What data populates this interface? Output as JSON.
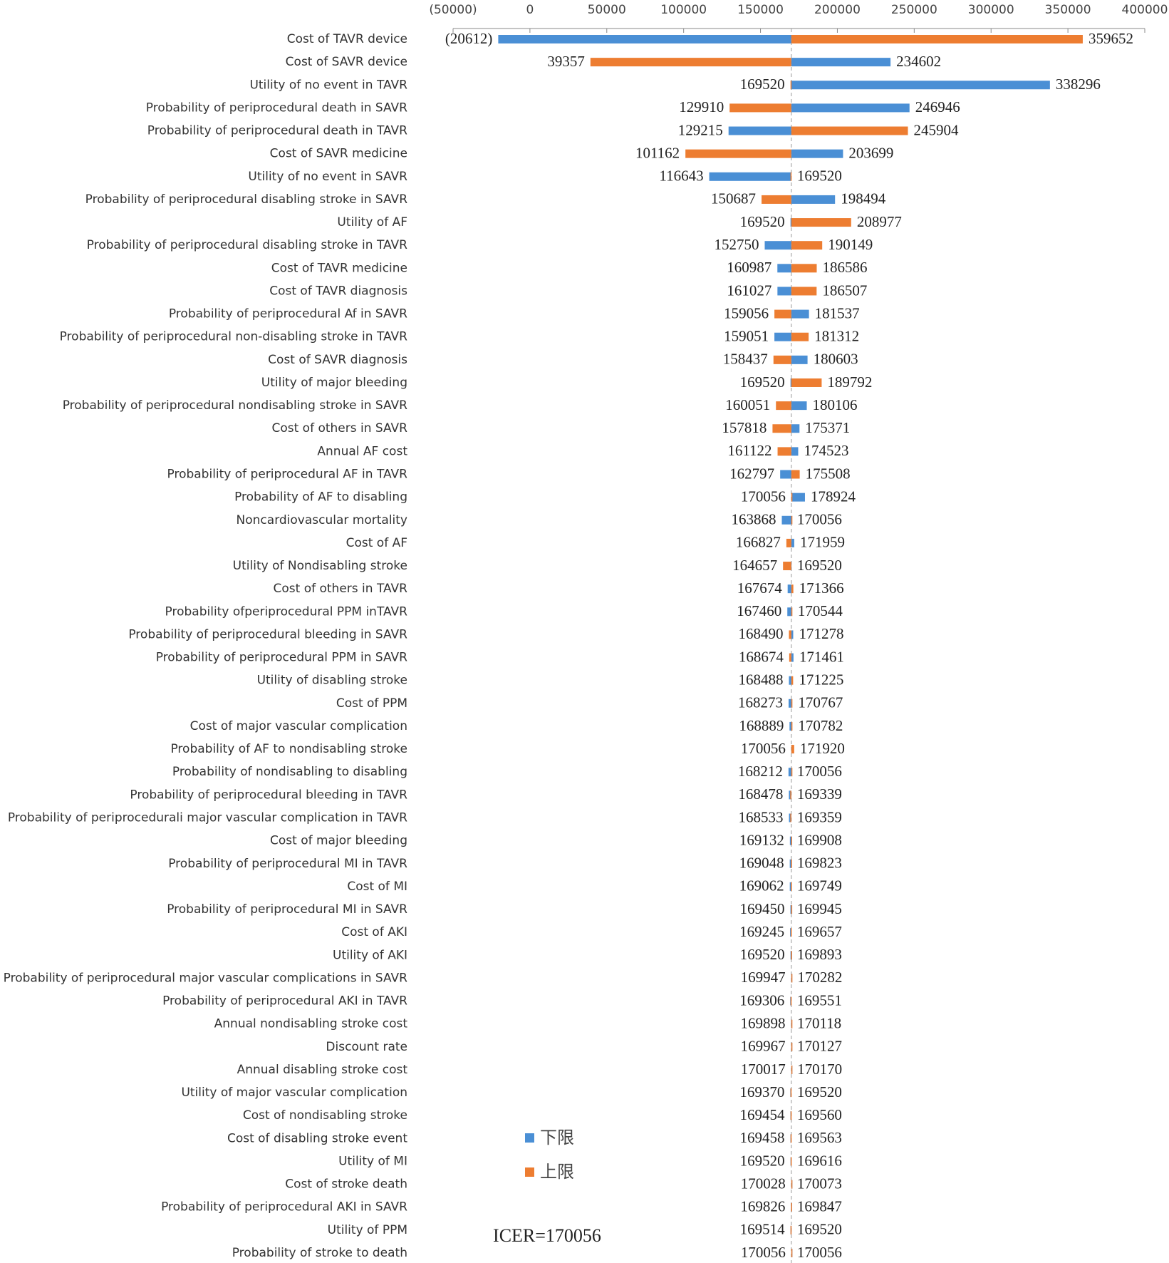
{
  "chart_data": {
    "type": "tornado",
    "annotation": "ICER=170056",
    "base": 170056,
    "xlim": [
      -50000,
      400000
    ],
    "xticks": [
      {
        "value": -50000,
        "label": "(50000)"
      },
      0,
      50000,
      100000,
      150000,
      200000,
      250000,
      300000,
      350000,
      400000
    ],
    "legend": "bottom-left",
    "categories": [
      "Cost of TAVR device",
      "Cost of SAVR device",
      "Utility of no event in TAVR",
      "Probability of periprocedural death in SAVR",
      "Probability of periprocedural death in TAVR",
      "Cost of SAVR medicine",
      "Utility of no event in SAVR",
      "Probability of periprocedural disabling stroke in SAVR",
      "Utility of AF",
      "Probability of periprocedural disabling stroke in TAVR",
      "Cost of TAVR medicine",
      "Cost of TAVR diagnosis",
      "Probability of periprocedural Af in SAVR",
      "Probability of periprocedural non-disabling stroke in TAVR",
      "Cost of SAVR diagnosis",
      "Utility of major bleeding",
      "Probability of periprocedural nondisabling stroke in SAVR",
      "Cost of others in SAVR",
      "Annual AF cost",
      "Probability of periprocedural AF in TAVR",
      "Probability of AF to disabling",
      "Noncardiovascular mortality",
      "Cost of AF",
      "Utility of Nondisabling stroke",
      "Cost of others in TAVR",
      "Probability ofperiprocedural PPM inTAVR",
      "Probability of periprocedural bleeding in SAVR",
      "Probability of periprocedural PPM in SAVR",
      "Utility of disabling stroke",
      "Cost of PPM",
      "Cost of major vascular complication",
      "Probability of AF to nondisabling stroke",
      "Probability of nondisabling to disabling",
      "Probability of periprocedural bleeding in TAVR",
      "Probability of periprocedurali major vascular complication in TAVR",
      "Cost of major bleeding",
      "Probability of periprocedural MI in TAVR",
      "Cost of MI",
      "Probability of periprocedural MI in SAVR",
      "Cost of AKI",
      "Utility of AKI",
      "Probability of periprocedural major vascular complications in SAVR",
      "Probability of periprocedural AKI in TAVR",
      "Annual nondisabling stroke cost",
      "Discount rate",
      "Annual disabling stroke cost",
      "Utility of major vascular complication",
      "Cost of nondisabling stroke",
      "Cost of disabling stroke event",
      "Utility of MI",
      "Cost of stroke death",
      "Probability of periprocedural AKI in SAVR",
      "Utility of PPM",
      "Probability of stroke to death"
    ],
    "series": [
      {
        "name": "下限",
        "color": "#4a8fd5",
        "values": [
          -20612,
          234602,
          338296,
          246946,
          129215,
          203699,
          116643,
          198494,
          169520,
          152750,
          160987,
          161027,
          181537,
          159051,
          180603,
          169520,
          180106,
          175371,
          174523,
          162797,
          178924,
          163868,
          171959,
          169520,
          167674,
          167460,
          171278,
          171461,
          168488,
          168273,
          168889,
          170056,
          168212,
          168478,
          168533,
          169132,
          169048,
          169062,
          169450,
          169245,
          169520,
          169947,
          169306,
          169898,
          169967,
          170017,
          169370,
          169454,
          169458,
          169520,
          170028,
          169826,
          169514,
          170056
        ],
        "value_labels": [
          "(20612)",
          "234602",
          "338296",
          "246946",
          "129215",
          "203699",
          "116643",
          "198494",
          "169520",
          "152750",
          "160987",
          "161027",
          "181537",
          "159051",
          "180603",
          "169520",
          "180106",
          "175371",
          "174523",
          "162797",
          "178924",
          "163868",
          "171959",
          "169520",
          "167674",
          "167460",
          "171278",
          "171461",
          "168488",
          "168273",
          "168889",
          "170056",
          "168212",
          "168478",
          "168533",
          "169132",
          "169048",
          "169062",
          "169450",
          "169245",
          "169520",
          "169947",
          "169306",
          "169898",
          "169967",
          "170017",
          "169370",
          "169454",
          "169458",
          "169520",
          "170028",
          "169826",
          "169514",
          "170056"
        ]
      },
      {
        "name": "上限",
        "color": "#ed7d31",
        "values": [
          359652,
          39357,
          169520,
          129910,
          245904,
          101162,
          169520,
          150687,
          208977,
          190149,
          186586,
          186507,
          159056,
          181312,
          158437,
          189792,
          160051,
          157818,
          161122,
          175508,
          170056,
          170056,
          166827,
          164657,
          171366,
          170544,
          168490,
          168674,
          171225,
          170767,
          170782,
          171920,
          170056,
          169339,
          169359,
          169908,
          169823,
          169749,
          169945,
          169657,
          169893,
          170282,
          169551,
          170118,
          170127,
          170170,
          169520,
          169560,
          169563,
          169616,
          170073,
          169847,
          169520,
          170056
        ]
      }
    ]
  }
}
